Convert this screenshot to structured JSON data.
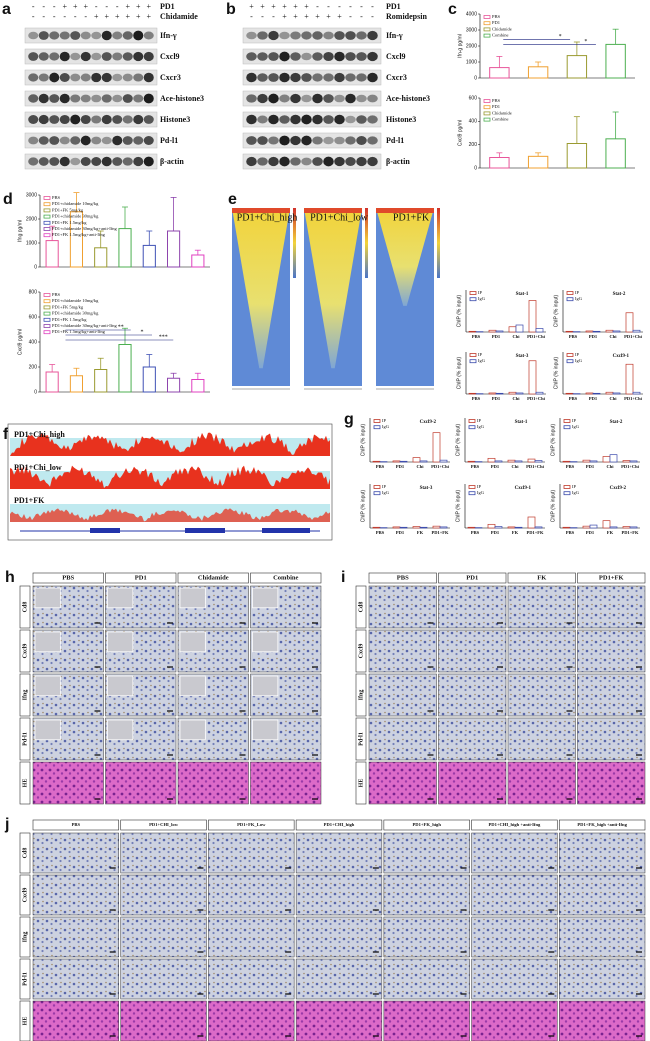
{
  "panels": {
    "a": {
      "label": "a",
      "conditions": [
        {
          "name": "PD1",
          "signs": [
            "-",
            "-",
            "-",
            "+",
            "+",
            "+",
            "-",
            "-",
            "-",
            "+",
            "+",
            "+"
          ]
        },
        {
          "name": "Chidamide",
          "signs": [
            "-",
            "-",
            "-",
            "-",
            "-",
            "-",
            "+",
            "+",
            "+",
            "+",
            "+",
            "+"
          ]
        }
      ],
      "blots": [
        "Ifn-γ",
        "Cxcl9",
        "Cxcr3",
        "Ace-histone3",
        "Histone3",
        "Pd-l1",
        "β-actin"
      ]
    },
    "b": {
      "label": "b",
      "conditions": [
        {
          "name": "PD1",
          "signs": [
            "+",
            "+",
            "+",
            "+",
            "+",
            "+",
            "-",
            "-",
            "-",
            "-",
            "-",
            "-"
          ]
        },
        {
          "name": "Romidepsin",
          "signs": [
            "-",
            "-",
            "-",
            "+",
            "+",
            "+",
            "+",
            "+",
            "+",
            "-",
            "-",
            "-"
          ]
        }
      ],
      "blots": [
        "Ifn-γ",
        "Cxcl9",
        "Cxcr3",
        "Ace-histone3",
        "Histone3",
        "Pd-l1",
        "β-actin"
      ]
    },
    "c": {
      "label": "c",
      "charts": [
        {
          "type": "bar",
          "ylabel": "Ifn-g pg/ml",
          "categories": [
            "PBS",
            "PD1",
            "Chidamide",
            "Combine"
          ],
          "colors": [
            "#e8559a",
            "#f0a030",
            "#9a9a30",
            "#4caf50"
          ],
          "values": [
            650,
            700,
            1400,
            2100
          ],
          "errors": [
            700,
            300,
            850,
            950
          ],
          "ylim": [
            0,
            4000
          ],
          "yticks": [
            0,
            1000,
            2000,
            3000,
            4000
          ],
          "legend": "top-left",
          "annotations": [
            "*",
            "*"
          ]
        },
        {
          "type": "bar",
          "ylabel": "Cxcl9 pg/ml",
          "categories": [
            "PBS",
            "PD1",
            "Chidamide",
            "Combine"
          ],
          "colors": [
            "#e8559a",
            "#f0a030",
            "#9a9a30",
            "#4caf50"
          ],
          "values": [
            90,
            100,
            210,
            250
          ],
          "errors": [
            40,
            30,
            230,
            230
          ],
          "ylim": [
            0,
            600
          ],
          "yticks": [
            0,
            200,
            400,
            600
          ],
          "legend": "top-left"
        }
      ]
    },
    "d": {
      "label": "d",
      "charts": [
        {
          "type": "bar",
          "ylabel": "Ifng pg/ml",
          "categories": [
            "PBS",
            "PD1+chidamide 10mg/kg",
            "PD1+FK 5mg/kg",
            "PD1+chidamide 30mg/kg",
            "PD1+FK 1.5mg/kg",
            "PD1+chidamide 30mg/kg+anti-Ifng",
            "PD1+FK 1.5mg/kg+anti-Ifng"
          ],
          "colors": [
            "#e8559a",
            "#f0a030",
            "#9a9a30",
            "#4caf50",
            "#3f51b5",
            "#8e44ad",
            "#e040c0"
          ],
          "values": [
            1100,
            2300,
            800,
            1600,
            900,
            1500,
            500
          ],
          "errors": [
            600,
            800,
            700,
            900,
            600,
            1400,
            200
          ],
          "ylim": [
            0,
            3000
          ],
          "yticks": [
            0,
            1000,
            2000,
            3000
          ],
          "legend": "top-left"
        },
        {
          "type": "bar",
          "ylabel": "Cxcl9 pg/ml",
          "categories": [
            "PBS",
            "PD1+chidamide 10mg/kg",
            "PD1+FK 5mg/kg",
            "PD1+chidamide 30mg/kg",
            "PD1+FK 1.5mg/kg",
            "PD1+chidamide 30mg/kg+anti-Ifng",
            "PD1+FK 1.5mg/kg+anti-Ifng"
          ],
          "colors": [
            "#e8559a",
            "#f0a030",
            "#9a9a30",
            "#4caf50",
            "#3f51b5",
            "#8e44ad",
            "#e040c0"
          ],
          "values": [
            160,
            130,
            180,
            380,
            200,
            110,
            100
          ],
          "errors": [
            60,
            60,
            90,
            130,
            100,
            40,
            50
          ],
          "ylim": [
            0,
            800
          ],
          "yticks": [
            0,
            200,
            400,
            600,
            800
          ],
          "legend": "top-left",
          "annotations": [
            "**",
            "*",
            "***"
          ]
        }
      ]
    },
    "e": {
      "label": "e",
      "heatmaps": [
        "PD1+Chi_high",
        "PD1+Chi_low",
        "PD1+FK"
      ],
      "charts": [
        {
          "type": "bar",
          "title": "Stat-1",
          "ylabel": "ChIP (% input)",
          "categories": [
            "PBS",
            "PD1",
            "Chi",
            "PD1+Chi"
          ],
          "ylim": [
            0,
            1.2
          ],
          "legend": "top-left",
          "series": [
            {
              "name": "IP",
              "color": "#c0392b",
              "values": [
                0.02,
                0.05,
                0.15,
                0.9
              ]
            },
            {
              "name": "IgG",
              "color": "#3949ab",
              "values": [
                0.01,
                0.03,
                0.2,
                0.1
              ]
            }
          ]
        },
        {
          "type": "bar",
          "title": "Stat-2",
          "ylabel": "ChIP (% input)",
          "categories": [
            "PBS",
            "PD1",
            "Chi",
            "PD1+Chi"
          ],
          "ylim": [
            0,
            1.2
          ],
          "legend": "top-left",
          "series": [
            {
              "name": "IP",
              "color": "#c0392b",
              "values": [
                0.02,
                0.03,
                0.05,
                0.55
              ]
            },
            {
              "name": "IgG",
              "color": "#3949ab",
              "values": [
                0.01,
                0.02,
                0.03,
                0.05
              ]
            }
          ]
        },
        {
          "type": "bar",
          "title": "Stat-3",
          "ylabel": "ChIP (% input)",
          "categories": [
            "PBS",
            "PD1",
            "Chi",
            "PD1+Chi"
          ],
          "ylim": [
            0,
            1.2
          ],
          "legend": "top-left",
          "series": [
            {
              "name": "IP",
              "color": "#c0392b",
              "values": [
                0.02,
                0.03,
                0.05,
                0.95
              ]
            },
            {
              "name": "IgG",
              "color": "#3949ab",
              "values": [
                0.01,
                0.02,
                0.03,
                0.05
              ]
            }
          ]
        },
        {
          "type": "bar",
          "title": "Cxcl9-1",
          "ylabel": "ChIP (% input)",
          "categories": [
            "PBS",
            "PD1",
            "Chi",
            "PD1+Chi"
          ],
          "ylim": [
            0,
            1.2
          ],
          "legend": "top-left",
          "series": [
            {
              "name": "IP",
              "color": "#c0392b",
              "values": [
                0.02,
                0.03,
                0.05,
                0.85
              ]
            },
            {
              "name": "IgG",
              "color": "#3949ab",
              "values": [
                0.01,
                0.02,
                0.03,
                0.05
              ]
            }
          ]
        }
      ]
    },
    "f": {
      "label": "f",
      "tracks": [
        "PD1+Chi_high",
        "PD1+Chi_low",
        "PD1+FK"
      ]
    },
    "g": {
      "label": "g",
      "charts": [
        {
          "type": "bar",
          "title": "Cxcl9-2",
          "ylabel": "ChIP (% input)",
          "categories": [
            "PBS",
            "PD1",
            "Chi",
            "PD1+Chi"
          ],
          "ylim": [
            0,
            1.2
          ],
          "legend": "top-left",
          "series": [
            {
              "name": "IP",
              "color": "#c0392b",
              "values": [
                0.02,
                0.03,
                0.12,
                0.8
              ]
            },
            {
              "name": "IgG",
              "color": "#3949ab",
              "values": [
                0.01,
                0.02,
                0.03,
                0.05
              ]
            }
          ]
        },
        {
          "type": "bar",
          "title": "Stat-1",
          "ylabel": "ChIP (% input)",
          "categories": [
            "PBS",
            "PD1",
            "Chi",
            "PD1+Chi"
          ],
          "ylim": [
            0,
            1.2
          ],
          "legend": "top-left",
          "series": [
            {
              "name": "IP",
              "color": "#c0392b",
              "values": [
                0.02,
                0.1,
                0.05,
                0.08
              ]
            },
            {
              "name": "IgG",
              "color": "#3949ab",
              "values": [
                0.01,
                0.03,
                0.03,
                0.04
              ]
            }
          ]
        },
        {
          "type": "bar",
          "title": "Stat-2",
          "ylabel": "ChIP (% input)",
          "categories": [
            "PBS",
            "PD1",
            "Chi",
            "PD1+Chi"
          ],
          "ylim": [
            0,
            1.2
          ],
          "legend": "top-left",
          "series": [
            {
              "name": "IP",
              "color": "#c0392b",
              "values": [
                0.02,
                0.05,
                0.15,
                0.04
              ]
            },
            {
              "name": "IgG",
              "color": "#3949ab",
              "values": [
                0.01,
                0.03,
                0.2,
                0.03
              ]
            }
          ]
        },
        {
          "type": "bar",
          "title": "Stat-3",
          "ylabel": "ChIP (% input)",
          "categories": [
            "PBS",
            "PD1",
            "FK",
            "PD1+FK"
          ],
          "ylim": [
            0,
            1.2
          ],
          "legend": "top-left",
          "series": [
            {
              "name": "IP",
              "color": "#c0392b",
              "values": [
                0.02,
                0.03,
                0.04,
                0.05
              ]
            },
            {
              "name": "IgG",
              "color": "#3949ab",
              "values": [
                0.01,
                0.02,
                0.02,
                0.03
              ]
            }
          ]
        },
        {
          "type": "bar",
          "title": "Cxcl9-1",
          "ylabel": "ChIP (% input)",
          "categories": [
            "PBS",
            "PD1",
            "FK",
            "PD1+FK"
          ],
          "ylim": [
            0,
            1.2
          ],
          "legend": "top-left",
          "series": [
            {
              "name": "IP",
              "color": "#c0392b",
              "values": [
                0.02,
                0.1,
                0.03,
                0.3
              ]
            },
            {
              "name": "IgG",
              "color": "#3949ab",
              "values": [
                0.01,
                0.04,
                0.02,
                0.03
              ]
            }
          ]
        },
        {
          "type": "bar",
          "title": "Cxcl9-2",
          "ylabel": "ChIP (% input)",
          "categories": [
            "PBS",
            "PD1",
            "FK",
            "PD1+FK"
          ],
          "ylim": [
            0,
            1.2
          ],
          "legend": "top-left",
          "series": [
            {
              "name": "IP",
              "color": "#c0392b",
              "values": [
                0.02,
                0.05,
                0.2,
                0.04
              ]
            },
            {
              "name": "IgG",
              "color": "#3949ab",
              "values": [
                0.01,
                0.08,
                0.03,
                0.03
              ]
            }
          ]
        }
      ]
    },
    "h": {
      "label": "h",
      "columns": [
        "PBS",
        "PD1",
        "Chidamide",
        "Combine"
      ],
      "rows": [
        "Cd8",
        "Cxcl9",
        "Ifng",
        "Pd-l1",
        "HE"
      ]
    },
    "i": {
      "label": "i",
      "columns": [
        "PBS",
        "PD1",
        "FK",
        "PD1+FK"
      ],
      "rows": [
        "Cd8",
        "Cxcl9",
        "Ifng",
        "Pd-l1",
        "HE"
      ]
    },
    "j": {
      "label": "j",
      "columns": [
        "PBS",
        "PD1+CHI_low",
        "PD1+FK_Low",
        "PD1+CHI_high",
        "PD1+FK_high",
        "PD1+CHI_high +anti-Ifng",
        "PD1+FK_high +anti-Ifng"
      ],
      "rows": [
        "Cd8",
        "Cxcl9",
        "Ifng",
        "Pd-l1",
        "HE"
      ]
    }
  }
}
